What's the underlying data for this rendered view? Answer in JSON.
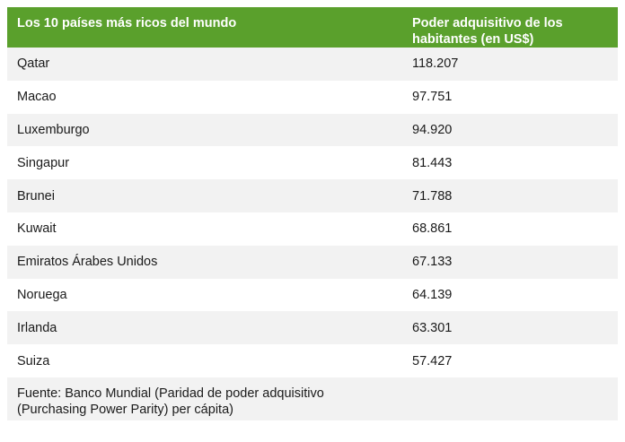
{
  "table": {
    "header": {
      "country": "Los 10 países más ricos del mundo",
      "value": "Poder adquisitivo de los habitantes (en US$)"
    },
    "rows": [
      {
        "country": "Qatar",
        "value": "118.207"
      },
      {
        "country": "Macao",
        "value": "97.751"
      },
      {
        "country": "Luxemburgo",
        "value": "94.920"
      },
      {
        "country": "Singapur",
        "value": "81.443"
      },
      {
        "country": "Brunei",
        "value": "71.788"
      },
      {
        "country": "Kuwait",
        "value": "68.861"
      },
      {
        "country": "Emiratos Árabes Unidos",
        "value": "67.133"
      },
      {
        "country": "Noruega",
        "value": "64.139"
      },
      {
        "country": "Irlanda",
        "value": "63.301"
      },
      {
        "country": "Suiza",
        "value": "57.427"
      }
    ],
    "footer": {
      "line1": "Fuente: Banco Mundial (Paridad de poder adquisitivo",
      "line2": "(Purchasing Power Parity) per cápita)"
    }
  },
  "colors": {
    "header_bg": "#5aa02c",
    "header_text": "#ffffff",
    "stripe": "#f2f2f2",
    "row": "#ffffff"
  }
}
